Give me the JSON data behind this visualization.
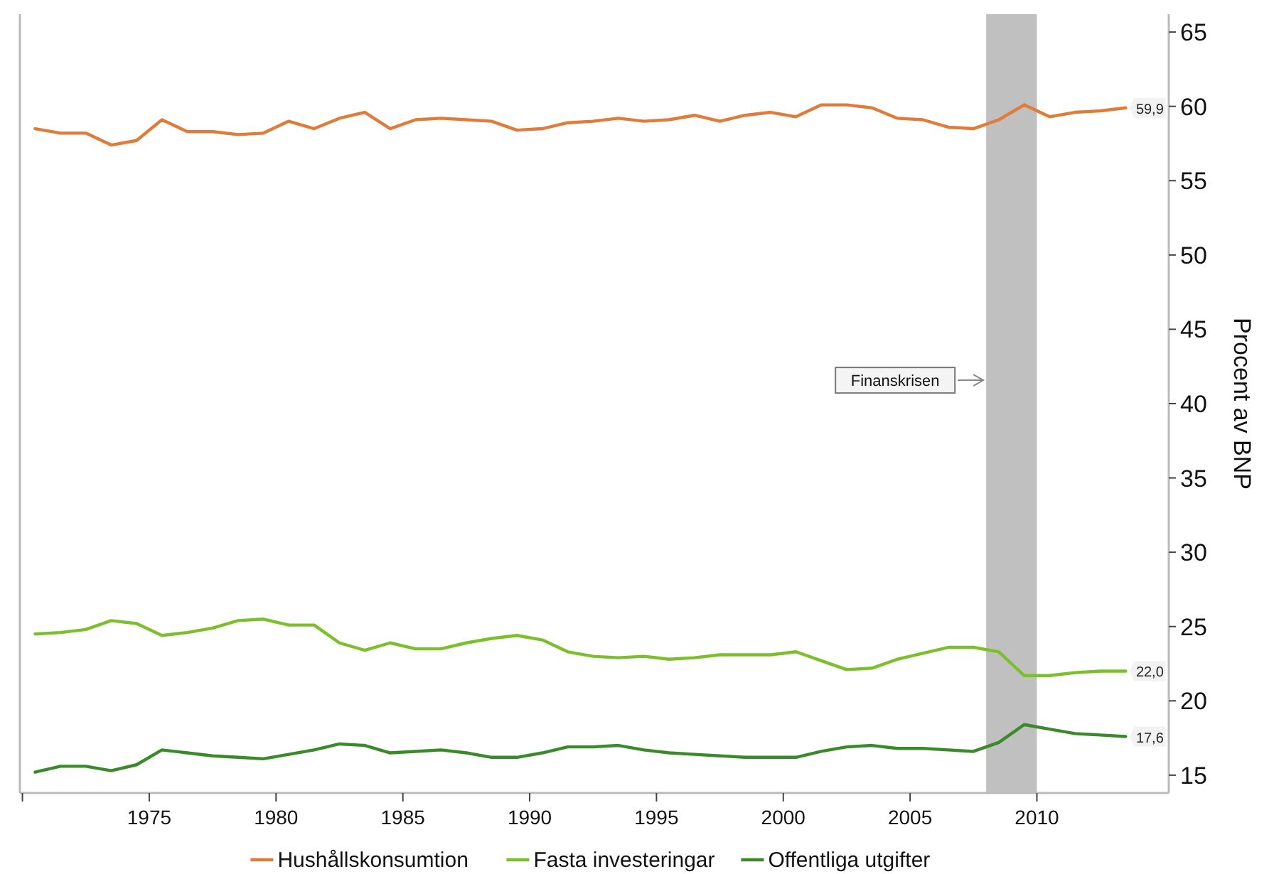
{
  "chart_data": {
    "type": "line",
    "ylabel": "Procent av BNP",
    "x": [
      1970.5,
      1971.5,
      1972.5,
      1973.5,
      1974.5,
      1975.5,
      1976.5,
      1977.5,
      1978.5,
      1979.5,
      1980.5,
      1981.5,
      1982.5,
      1983.5,
      1984.5,
      1985.5,
      1986.5,
      1987.5,
      1988.5,
      1989.5,
      1990.5,
      1991.5,
      1992.5,
      1993.5,
      1994.5,
      1995.5,
      1996.5,
      1997.5,
      1998.5,
      1999.5,
      2000.5,
      2001.5,
      2002.5,
      2003.5,
      2004.5,
      2005.5,
      2006.5,
      2007.5,
      2008.5,
      2009.5,
      2010.5,
      2011.5,
      2012.5,
      2013.5
    ],
    "xlim": [
      1969.9,
      2015.2
    ],
    "xticks": [
      {
        "value": 1970,
        "label": null
      },
      1975,
      1980,
      1985,
      1990,
      1995,
      2000,
      2005,
      2010
    ],
    "ylim": [
      13.8,
      66.2
    ],
    "yticks": [
      15,
      20,
      25,
      30,
      35,
      40,
      45,
      50,
      55,
      60,
      65
    ],
    "grid": false,
    "legend": "bottom",
    "line_style": "solid",
    "marker": "none",
    "bands": [
      {
        "axis": "x",
        "from": 2008,
        "to": 2010,
        "label": "Finanskrisen",
        "color": "#c0c0c0"
      }
    ],
    "series": [
      {
        "name": "Hushållskonsumtion",
        "color": "#e07b39",
        "values": [
          58.5,
          58.2,
          58.2,
          57.4,
          57.7,
          59.1,
          58.3,
          58.3,
          58.1,
          58.2,
          59.0,
          58.5,
          59.2,
          59.6,
          58.5,
          59.1,
          59.2,
          59.1,
          59.0,
          58.4,
          58.5,
          58.9,
          59.0,
          59.2,
          59.0,
          59.1,
          59.4,
          59.0,
          59.4,
          59.6,
          59.3,
          60.1,
          60.1,
          59.9,
          59.2,
          59.1,
          58.6,
          58.5,
          59.1,
          60.1,
          59.3,
          59.6,
          59.7,
          59.9
        ],
        "value_labels": [
          null,
          null,
          null,
          null,
          null,
          null,
          null,
          null,
          null,
          null,
          null,
          null,
          null,
          null,
          null,
          null,
          null,
          null,
          null,
          null,
          null,
          null,
          null,
          null,
          null,
          null,
          null,
          null,
          null,
          null,
          null,
          null,
          null,
          null,
          null,
          null,
          null,
          null,
          null,
          null,
          null,
          null,
          null,
          "59,9"
        ]
      },
      {
        "name": "Fasta investeringar",
        "color": "#7bbf2a",
        "values": [
          24.5,
          24.6,
          24.8,
          25.4,
          25.2,
          24.4,
          24.6,
          24.9,
          25.4,
          25.5,
          25.1,
          25.1,
          23.9,
          23.4,
          23.9,
          23.5,
          23.5,
          23.9,
          24.2,
          24.4,
          24.1,
          23.3,
          23.0,
          22.9,
          23.0,
          22.8,
          22.9,
          23.1,
          23.1,
          23.1,
          23.3,
          22.7,
          22.1,
          22.2,
          22.8,
          23.2,
          23.6,
          23.6,
          23.3,
          21.7,
          21.7,
          21.9,
          22.0,
          22.0
        ],
        "value_labels": [
          null,
          null,
          null,
          null,
          null,
          null,
          null,
          null,
          null,
          null,
          null,
          null,
          null,
          null,
          null,
          null,
          null,
          null,
          null,
          null,
          null,
          null,
          null,
          null,
          null,
          null,
          null,
          null,
          null,
          null,
          null,
          null,
          null,
          null,
          null,
          null,
          null,
          null,
          null,
          null,
          null,
          null,
          null,
          "22,0"
        ]
      },
      {
        "name": "Offentliga utgifter",
        "color": "#3a8a2a",
        "values": [
          15.2,
          15.6,
          15.6,
          15.3,
          15.7,
          16.7,
          16.5,
          16.3,
          16.2,
          16.1,
          16.4,
          16.7,
          17.1,
          17.0,
          16.5,
          16.6,
          16.7,
          16.5,
          16.2,
          16.2,
          16.5,
          16.9,
          16.9,
          17.0,
          16.7,
          16.5,
          16.4,
          16.3,
          16.2,
          16.2,
          16.2,
          16.6,
          16.9,
          17.0,
          16.8,
          16.8,
          16.7,
          16.6,
          17.2,
          18.4,
          18.1,
          17.8,
          17.7,
          17.6
        ],
        "value_labels": [
          null,
          null,
          null,
          null,
          null,
          null,
          null,
          null,
          null,
          null,
          null,
          null,
          null,
          null,
          null,
          null,
          null,
          null,
          null,
          null,
          null,
          null,
          null,
          null,
          null,
          null,
          null,
          null,
          null,
          null,
          null,
          null,
          null,
          null,
          null,
          null,
          null,
          null,
          null,
          null,
          null,
          null,
          null,
          "17,6"
        ]
      }
    ]
  }
}
